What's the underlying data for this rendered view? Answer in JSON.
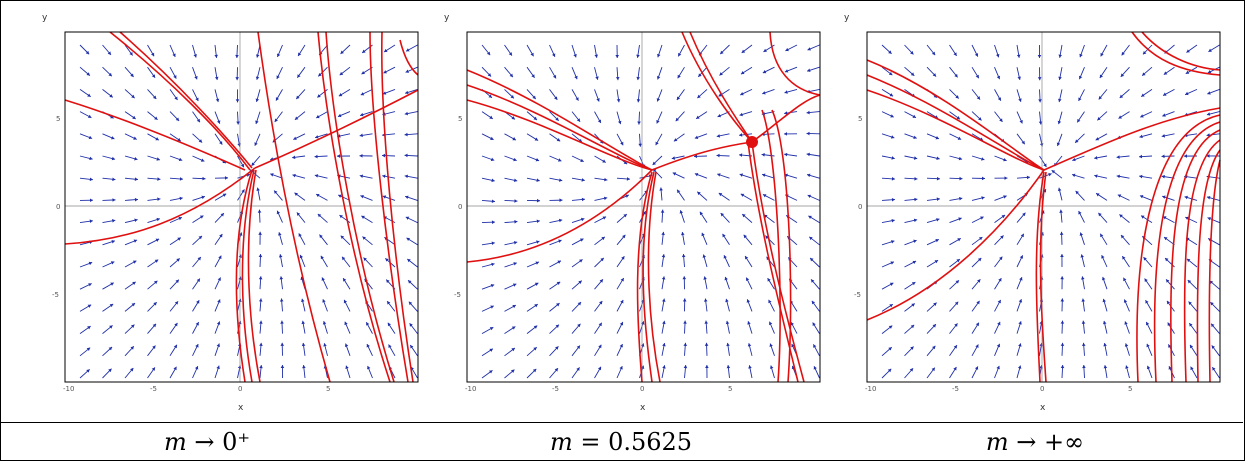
{
  "panels": [
    {
      "x_label": "x",
      "y_label": "y",
      "x_ticks": [
        "-10",
        "-5",
        "0",
        "5"
      ],
      "y_ticks": [
        "5",
        "0",
        "-5"
      ],
      "caption": {
        "var": "m",
        "rel": " → ",
        "val": "0⁺"
      }
    },
    {
      "x_label": "x",
      "y_label": "y",
      "x_ticks": [
        "-10",
        "-5",
        "0",
        "5"
      ],
      "y_ticks": [
        "5",
        "0",
        "-5"
      ],
      "caption": {
        "var": "m",
        "rel": " = ",
        "val": "0.5625"
      }
    },
    {
      "x_label": "x",
      "y_label": "y",
      "x_ticks": [
        "-10",
        "-5",
        "0",
        "5"
      ],
      "y_ticks": [
        "5",
        "0",
        "-5"
      ],
      "caption": {
        "var": "m",
        "rel": " → ",
        "val": "+∞"
      }
    }
  ],
  "colors": {
    "field_arrows": "#1f2fa8",
    "trajectories": "#e01010",
    "axes": "#888888"
  },
  "plot_type": "phase-portrait (vector field with trajectories)",
  "x_range": [
    -10,
    10
  ],
  "y_range": [
    -10,
    10
  ]
}
